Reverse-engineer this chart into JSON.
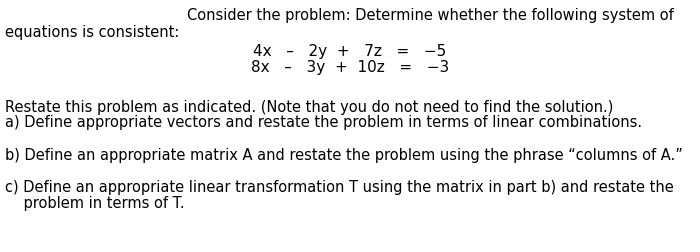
{
  "background_color": "#ffffff",
  "title_line1": "Consider the problem: Determine whether the following system of",
  "title_line2": "equations is consistent:",
  "eq1": "4x   –   2y  +   7z   =   −5",
  "eq2": "8x   –   3y  +  10z   =   −3",
  "restate_line1": "Restate this problem as indicated. (Note that you do not need to find the solution.)",
  "restate_line2": "a) Define appropriate vectors and restate the problem in terms of linear combinations.",
  "part_b": "b) Define an appropriate matrix A and restate the problem using the phrase “columns of A.”",
  "part_c_line1": "c) Define an appropriate linear transformation T using the matrix in part b) and restate the",
  "part_c_line2": "    problem in terms of T.",
  "fontsize": 10.5,
  "fontsize_eq": 11
}
